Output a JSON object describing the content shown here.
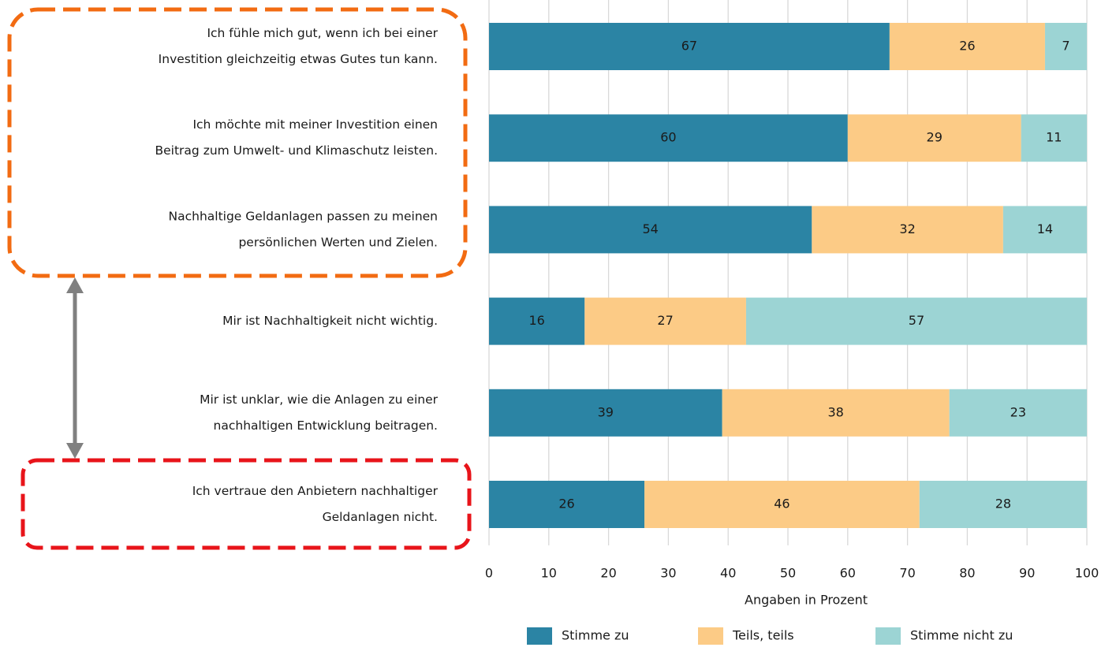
{
  "chart_data": {
    "type": "stacked_barh",
    "categories": [
      [
        "Ich fühle mich gut, wenn ich bei einer",
        "Investition gleichzeitig etwas Gutes tun kann."
      ],
      [
        "Ich möchte mit meiner Investition einen",
        "Beitrag zum Umwelt- und Klimaschutz leisten."
      ],
      [
        "Nachhaltige Geldanlagen passen zu meinen",
        "persönlichen Werten und Zielen."
      ],
      [
        "Mir ist Nachhaltigkeit nicht wichtig."
      ],
      [
        "Mir ist unklar, wie die Anlagen zu einer",
        "nachhaltigen Entwicklung beitragen."
      ],
      [
        "Ich vertraue den Anbietern nachhaltiger",
        "Geldanlagen nicht."
      ]
    ],
    "series": [
      {
        "name": "Stimme zu",
        "color": "#2b84a4",
        "values": [
          67,
          60,
          54,
          16,
          39,
          26
        ]
      },
      {
        "name": "Teils, teils",
        "color": "#fccb86",
        "values": [
          26,
          29,
          32,
          27,
          38,
          46
        ]
      },
      {
        "name": "Stimme nicht zu",
        "color": "#9cd4d4",
        "values": [
          7,
          11,
          14,
          57,
          23,
          28
        ]
      }
    ],
    "xlabel": "Angaben in Prozent",
    "xlim": [
      0,
      100
    ],
    "xticks": [
      0,
      10,
      20,
      30,
      40,
      50,
      60,
      70,
      80,
      90,
      100
    ],
    "grid": true,
    "legend": "bottom"
  }
}
